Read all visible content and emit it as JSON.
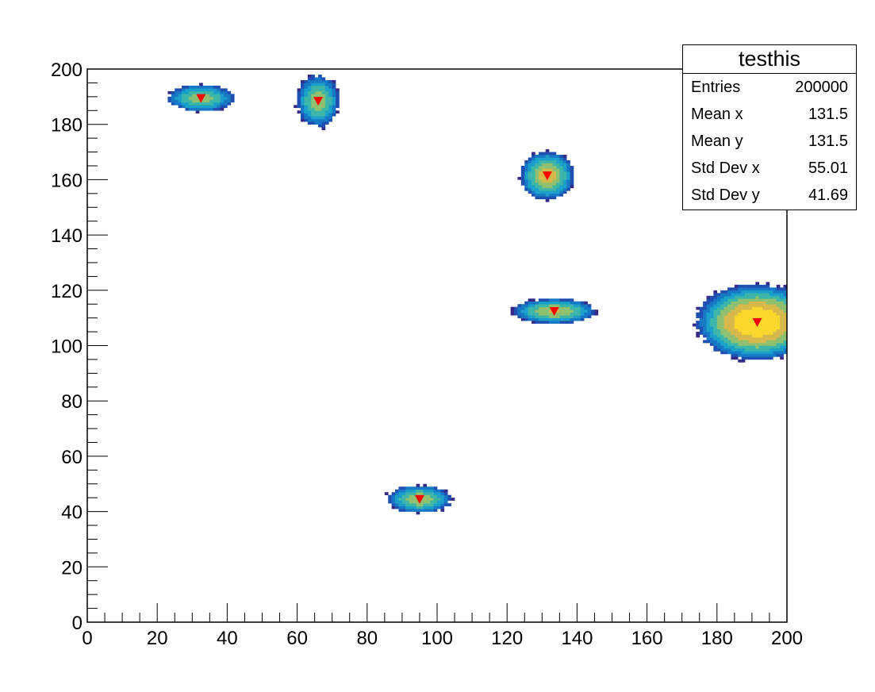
{
  "chart_data": {
    "type": "heatmap",
    "title": "",
    "xlabel": "",
    "ylabel": "",
    "xlim": [
      0,
      200
    ],
    "ylim": [
      0,
      200
    ],
    "x_ticks": [
      "0",
      "20",
      "40",
      "60",
      "80",
      "100",
      "120",
      "140",
      "160",
      "180",
      "200"
    ],
    "y_ticks": [
      "0",
      "20",
      "40",
      "60",
      "80",
      "100",
      "120",
      "140",
      "160",
      "180",
      "200"
    ],
    "grid": false,
    "colormap": [
      "#352a87",
      "#1f4fb0",
      "#1779c5",
      "#1aa0c9",
      "#3db6a8",
      "#8ec070",
      "#d6b84b",
      "#f9d72c"
    ],
    "marker_color": "#ff0000",
    "clusters": [
      {
        "x": 32.5,
        "y": 189.5,
        "sx": 4.6,
        "sy": 2.4,
        "weight": 0.55
      },
      {
        "x": 66.0,
        "y": 188.5,
        "sx": 3.0,
        "sy": 4.6,
        "weight": 0.55
      },
      {
        "x": 131.5,
        "y": 161.5,
        "sx": 3.5,
        "sy": 4.0,
        "weight": 0.8
      },
      {
        "x": 133.5,
        "y": 112.5,
        "sx": 5.5,
        "sy": 2.1,
        "weight": 0.7
      },
      {
        "x": 191.5,
        "y": 108.5,
        "sx": 7.0,
        "sy": 5.5,
        "weight": 1.6
      },
      {
        "x": 95.0,
        "y": 44.5,
        "sx": 4.5,
        "sy": 2.4,
        "weight": 0.6
      }
    ],
    "stats": {
      "title": "testhis",
      "rows": [
        {
          "label": "Entries",
          "value": "200000"
        },
        {
          "label": "Mean x",
          "value": "131.5"
        },
        {
          "label": "Mean y",
          "value": "131.5"
        },
        {
          "label": "Std Dev x",
          "value": "55.01"
        },
        {
          "label": "Std Dev y",
          "value": "41.69"
        }
      ],
      "placement": "top-right"
    }
  }
}
